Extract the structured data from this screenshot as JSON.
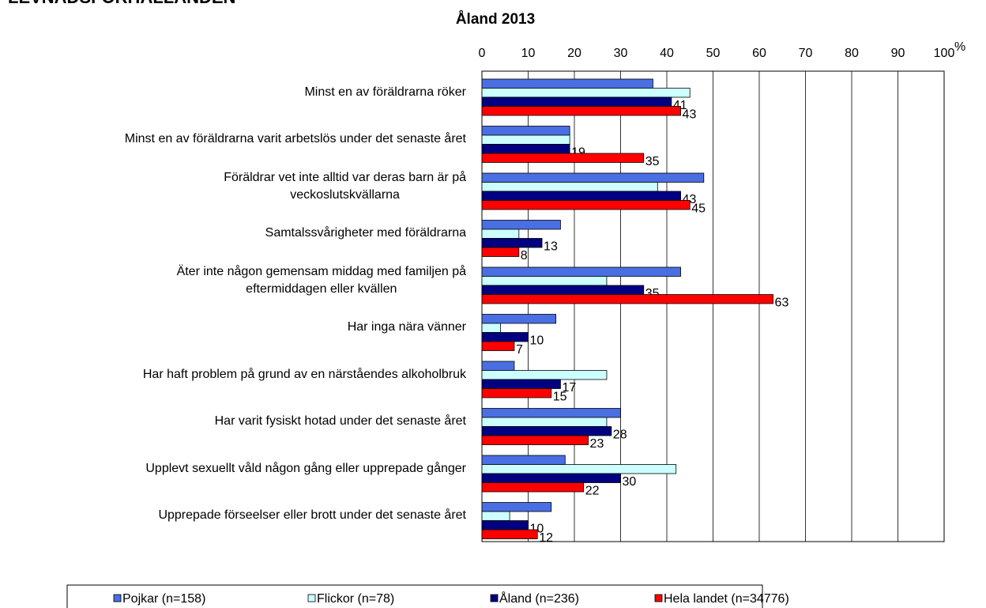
{
  "chart_data": {
    "type": "barh",
    "heading": "LEVNADSFÖRHÅLLANDEN",
    "title": "Åland 2013",
    "unit": "%",
    "categories": [
      "Minst en av föräldrarna röker",
      "Minst en av föräldrarna varit arbetslös under det senaste året",
      "Föräldrar vet inte alltid var deras barn är på\nveckoslutskvällarna",
      "Samtalssvårigheter med föräldrarna",
      "Äter inte någon gemensam middag med familjen på\neftermiddagen eller kvällen",
      "Har inga nära vänner",
      "Har haft problem på grund av en närståendes alkoholbruk",
      "Har varit fysiskt hotad under det senaste året",
      "Upplevt sexuellt våld någon gång eller upprepade gånger",
      "Upprepade förseelser eller brott under det senaste året"
    ],
    "series": [
      {
        "name": "Pojkar (n=158)",
        "color": "#4a6fe3",
        "show_labels": false,
        "values": [
          37,
          19,
          48,
          17,
          43,
          16,
          7,
          30,
          18,
          15
        ]
      },
      {
        "name": "Flickor (n=78)",
        "color": "#ccffff",
        "show_labels": false,
        "values": [
          45,
          19,
          38,
          8,
          27,
          4,
          27,
          27,
          42,
          6
        ]
      },
      {
        "name": "Åland (n=236)",
        "color": "#000080",
        "show_labels": true,
        "values": [
          41,
          19,
          43,
          13,
          35,
          10,
          17,
          28,
          30,
          10
        ]
      },
      {
        "name": "Hela landet (n=34776)",
        "color": "#ff0000",
        "show_labels": true,
        "values": [
          43,
          35,
          45,
          8,
          63,
          7,
          15,
          23,
          22,
          12
        ]
      }
    ],
    "xlim": [
      0,
      100
    ],
    "xticks": [
      0,
      10,
      20,
      30,
      40,
      50,
      60,
      70,
      80,
      90,
      100
    ],
    "grid": true
  }
}
